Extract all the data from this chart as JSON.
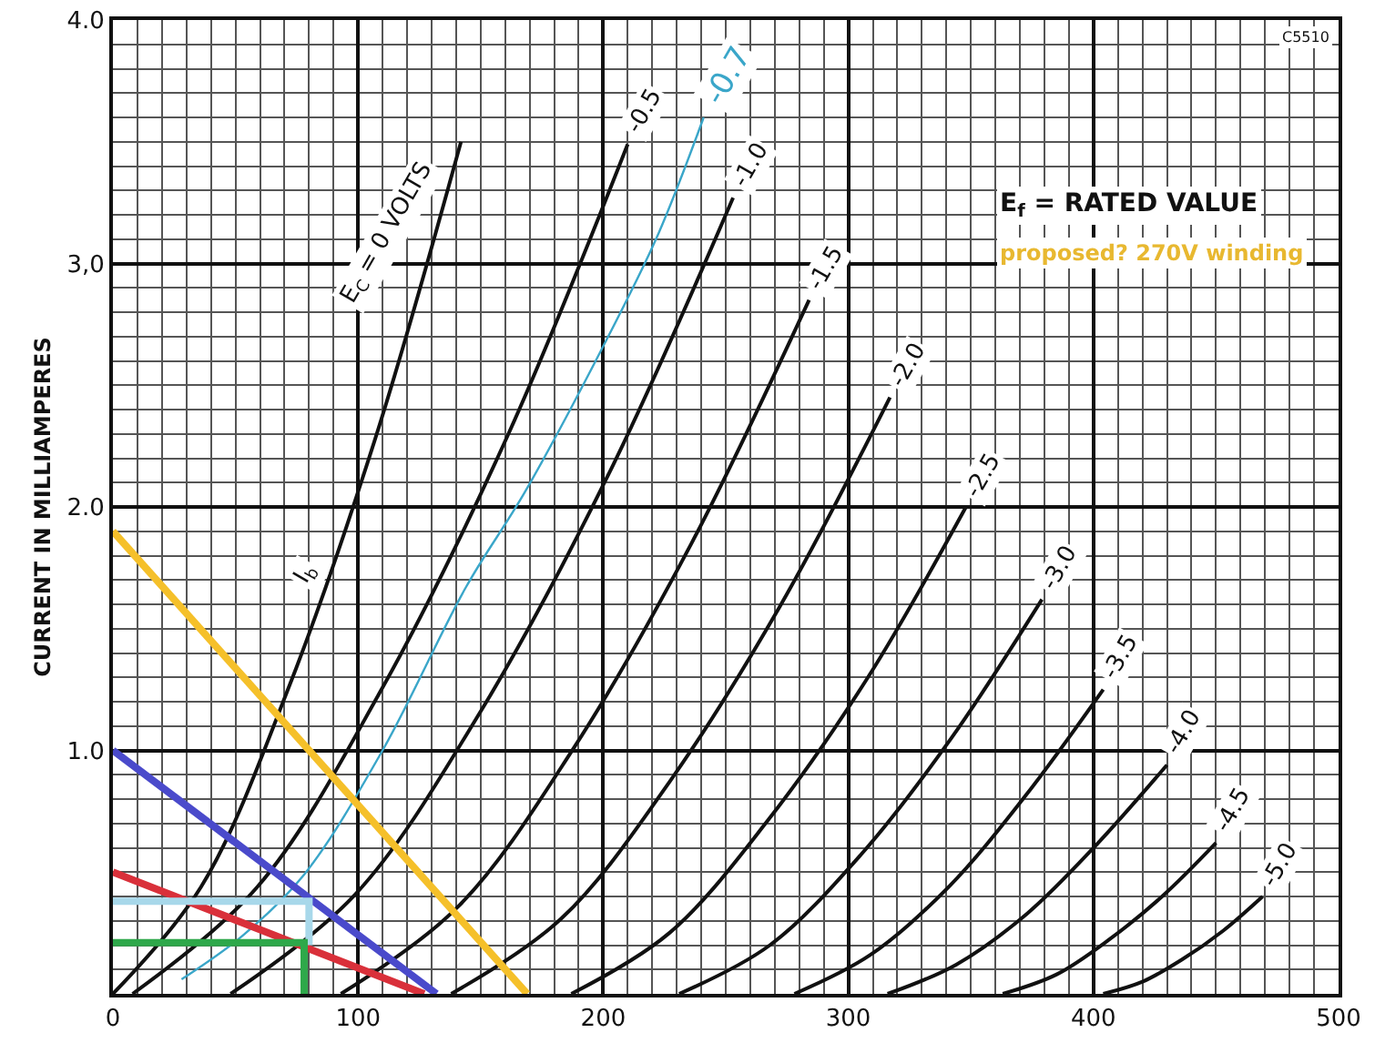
{
  "chart_data": {
    "type": "line",
    "ylabel": "CURRENT IN MILLIAMPERES",
    "xlim": [
      0,
      500
    ],
    "ylim": [
      0,
      4
    ],
    "xticks": [
      0,
      100,
      200,
      300,
      400,
      500
    ],
    "yticks": [
      {
        "value": 1,
        "label": "1.0"
      },
      {
        "value": 2,
        "label": "2.0"
      },
      {
        "value": 3,
        "label": "3,0"
      },
      {
        "value": 4,
        "label": "4.0"
      }
    ],
    "grid": true,
    "legend": false,
    "marker": "none",
    "line_style": "solid",
    "series": [
      {
        "name": "E$_{C}$ = 0 VOLTS",
        "color": "#111111",
        "x": [
          0,
          36,
          71,
          107,
          142
        ],
        "values": [
          0,
          0.44,
          1.24,
          2.28,
          3.5
        ]
      },
      {
        "name": "-0.5",
        "color": "#111111",
        "x": [
          8,
          59,
          109,
          160,
          210
        ],
        "values": [
          0,
          0.44,
          1.24,
          2.27,
          3.49
        ]
      },
      {
        "name": "-1.0",
        "color": "#111111",
        "x": [
          48,
          99,
          150,
          202,
          253
        ],
        "values": [
          0,
          0.41,
          1.16,
          2.13,
          3.27
        ]
      },
      {
        "name": "-1.5",
        "color": "#111111",
        "x": [
          93,
          141,
          188,
          236,
          284
        ],
        "values": [
          0,
          0.36,
          1.01,
          1.85,
          2.85
        ]
      },
      {
        "name": "-2.0",
        "color": "#111111",
        "x": [
          138,
          183,
          227,
          272,
          317
        ],
        "values": [
          0,
          0.31,
          0.87,
          1.59,
          2.45
        ]
      },
      {
        "name": "-2.5",
        "color": "#111111",
        "x": [
          187,
          227,
          267,
          308,
          348
        ],
        "values": [
          0,
          0.25,
          0.71,
          1.3,
          2.0
        ]
      },
      {
        "name": "-3.0",
        "color": "#111111",
        "x": [
          231,
          268,
          305,
          342,
          379
        ],
        "values": [
          0,
          0.2,
          0.57,
          1.05,
          1.62
        ]
      },
      {
        "name": "-3.5",
        "color": "#111111",
        "x": [
          278,
          309,
          341,
          372,
          404
        ],
        "values": [
          0,
          0.16,
          0.44,
          0.81,
          1.25
        ]
      },
      {
        "name": "-4.0",
        "color": "#111111",
        "x": [
          316,
          344,
          373,
          401,
          430
        ],
        "values": [
          0,
          0.12,
          0.33,
          0.61,
          0.94
        ]
      },
      {
        "name": "-4.5",
        "color": "#111111",
        "x": [
          363,
          385,
          406,
          428,
          450
        ],
        "values": [
          0,
          0.08,
          0.22,
          0.4,
          0.62
        ]
      },
      {
        "name": "-5.0",
        "color": "#111111",
        "x": [
          404,
          420,
          436,
          453,
          469
        ],
        "values": [
          0,
          0.05,
          0.14,
          0.26,
          0.4
        ]
      },
      {
        "name": "-0.7",
        "color": "#3aa6c9",
        "x": [
          28,
          53,
          78,
          110,
          144,
          168,
          199,
          222,
          241
        ],
        "values": [
          0.06,
          0.24,
          0.49,
          1.0,
          1.67,
          2.06,
          2.64,
          3.11,
          3.6
        ]
      },
      {
        "color": "#f5c02a",
        "x": [
          0,
          169
        ],
        "values": [
          1.9,
          0
        ]
      },
      {
        "color": "#4a4acb",
        "x": [
          0,
          132
        ],
        "values": [
          1.0,
          0
        ]
      },
      {
        "color": "#d9303a",
        "x": [
          0,
          127
        ],
        "values": [
          0.5,
          0
        ]
      },
      {
        "color": "#a8d8ea",
        "x": [
          0,
          80,
          80
        ],
        "values": [
          0.38,
          0.38,
          0.2
        ]
      },
      {
        "color": "#2ea84a",
        "x": [
          0,
          78,
          78
        ],
        "values": [
          0.21,
          0.21,
          0
        ]
      }
    ],
    "annotations": [
      "I$_{b}$",
      "E$_{f}$ = RATED VALUE",
      "proposed? 270V winding",
      "C5510"
    ]
  }
}
